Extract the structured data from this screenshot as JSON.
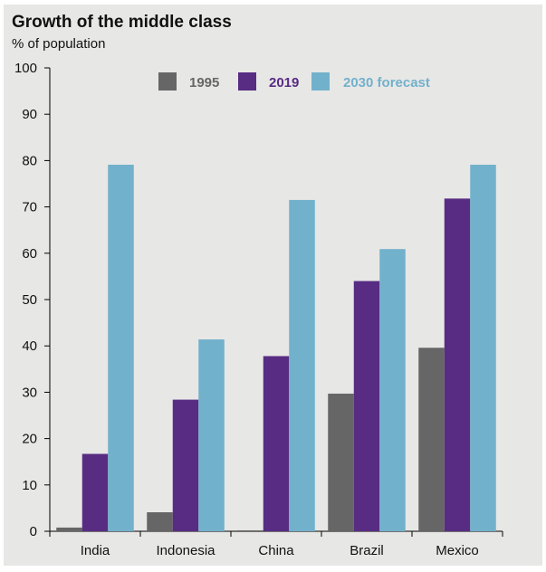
{
  "chart_data": {
    "type": "bar",
    "title": "Growth of the middle class",
    "subtitle": "% of population",
    "xlabel": "",
    "ylabel": "% of population",
    "ylim": [
      0,
      100
    ],
    "yticks": [
      0,
      10,
      20,
      30,
      40,
      50,
      60,
      70,
      80,
      90,
      100
    ],
    "grid": false,
    "legend_position": "top-center",
    "categories": [
      "India",
      "Indonesia",
      "China",
      "Brazil",
      "Mexico"
    ],
    "series": [
      {
        "name": "1995",
        "color": "#666666",
        "values": [
          0.8,
          4.1,
          0.2,
          29.7,
          39.6
        ]
      },
      {
        "name": "2019",
        "color": "#582c83",
        "values": [
          16.7,
          28.4,
          37.8,
          54.0,
          71.8
        ]
      },
      {
        "name": "2030 forecast",
        "color": "#72b1cb",
        "values": [
          79.1,
          41.4,
          71.5,
          60.9,
          79.1
        ]
      }
    ]
  }
}
